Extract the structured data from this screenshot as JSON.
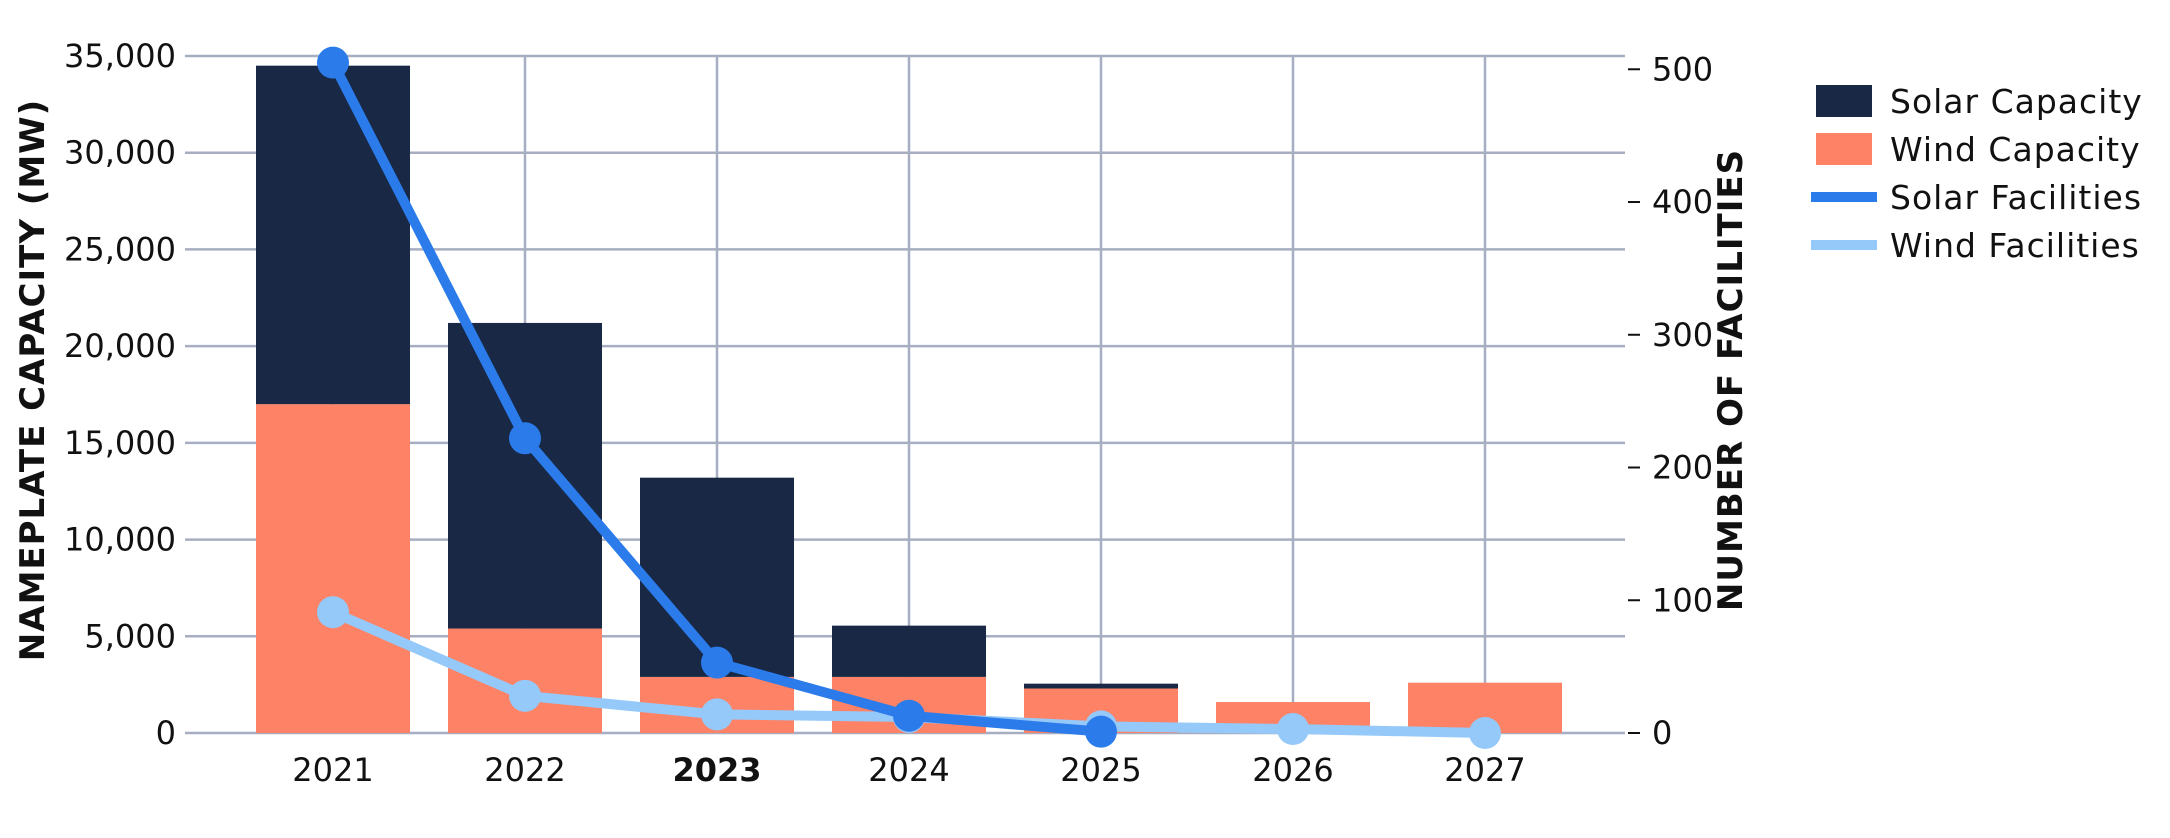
{
  "chart_data": {
    "type": "bar",
    "stacked": true,
    "categories": [
      "2021",
      "2022",
      "2023",
      "2024",
      "2025",
      "2026",
      "2027"
    ],
    "highlighted_category": "2023",
    "series": [
      {
        "name": "Wind Capacity",
        "kind": "bar",
        "axis": "left",
        "color": "#fd8266",
        "values": [
          17000,
          5400,
          2900,
          2900,
          2300,
          1600,
          2600
        ]
      },
      {
        "name": "Solar Capacity",
        "kind": "bar",
        "axis": "left",
        "color": "#182845",
        "values": [
          17500,
          15800,
          10300,
          2650,
          250,
          0,
          0
        ]
      },
      {
        "name": "Solar Facilities",
        "kind": "line",
        "axis": "right",
        "color": "#2b7bea",
        "values": [
          505,
          222,
          53,
          13,
          1,
          null,
          null
        ]
      },
      {
        "name": "Wind Facilities",
        "kind": "line",
        "axis": "right",
        "color": "#95c9fa",
        "values": [
          91,
          28,
          14,
          12,
          5,
          3,
          0
        ]
      }
    ],
    "ylabel": "NAMEPLATE CAPACITY (MW)",
    "y2label": "NUMBER OF FACILITIES",
    "ylim": [
      0,
      35000
    ],
    "y2lim": [
      0,
      510
    ],
    "yticks": [
      "0",
      "5,000",
      "10,000",
      "15,000",
      "20,000",
      "25,000",
      "30,000",
      "35,000"
    ],
    "y2ticks": [
      "0",
      "100",
      "200",
      "300",
      "400",
      "500"
    ],
    "legend": {
      "position": "right",
      "items": [
        {
          "label": "Solar Capacity",
          "shape": "box",
          "color": "#182845"
        },
        {
          "label": "Wind Capacity",
          "shape": "box",
          "color": "#fd8266"
        },
        {
          "label": "Solar Facilities",
          "shape": "line",
          "color": "#2b7bea"
        },
        {
          "label": "Wind Facilities",
          "shape": "line",
          "color": "#95c9fa"
        }
      ]
    },
    "grid": true
  }
}
